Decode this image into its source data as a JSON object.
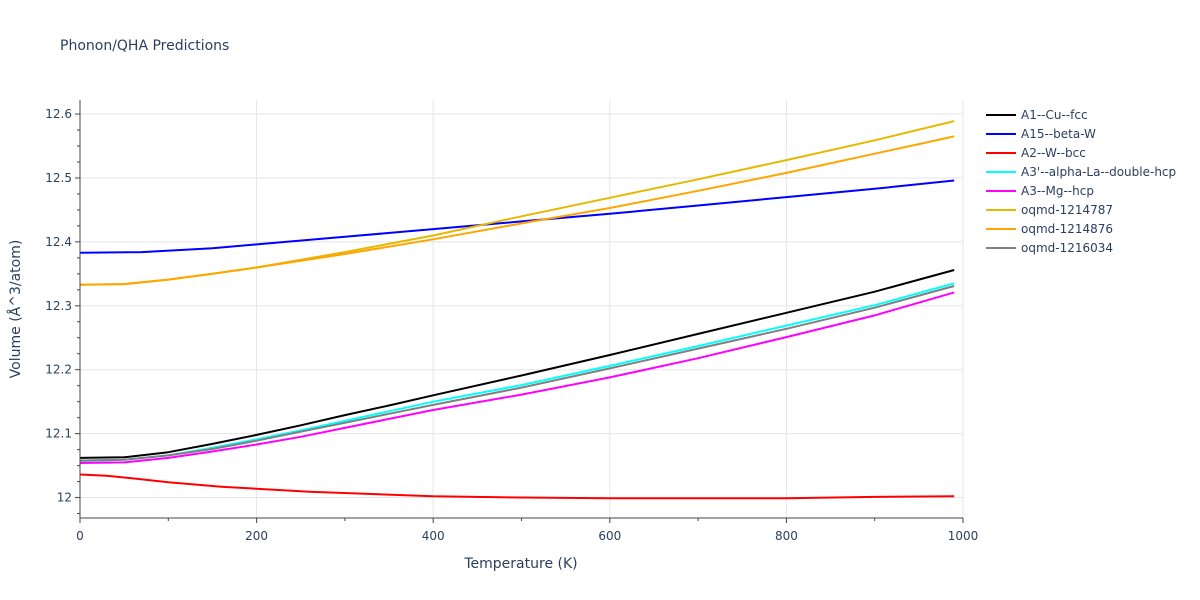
{
  "chart_data": {
    "type": "line",
    "title": "Phonon/QHA Predictions",
    "xlabel": "Temperature (K)",
    "ylabel": "Volume (Å^3/atom)",
    "xlim": [
      0,
      1000
    ],
    "ylim": [
      11.968,
      12.622
    ],
    "xticks": [
      0,
      200,
      400,
      600,
      800,
      1000
    ],
    "xtick_labels": [
      "0",
      "200",
      "400",
      "600",
      "800",
      "1000"
    ],
    "yticks": [
      12.0,
      12.1,
      12.2,
      12.3,
      12.4,
      12.5,
      12.6
    ],
    "ytick_labels": [
      "12",
      "12.1",
      "12.2",
      "12.3",
      "12.4",
      "12.5",
      "12.6"
    ],
    "grid": true,
    "legend_position": "top-right",
    "series": [
      {
        "name": "A1--Cu--fcc",
        "color": "#000000",
        "x": [
          0,
          50,
          100,
          150,
          200,
          250,
          300,
          350,
          400,
          500,
          600,
          700,
          800,
          900,
          990
        ],
        "y": [
          12.062,
          12.063,
          12.071,
          12.084,
          12.098,
          12.113,
          12.129,
          12.144,
          12.16,
          12.191,
          12.223,
          12.256,
          12.289,
          12.322,
          12.356
        ]
      },
      {
        "name": "A15--beta-W",
        "color": "#0000ff",
        "x": [
          0,
          70,
          150,
          200,
          300,
          400,
          500,
          600,
          700,
          800,
          900,
          990
        ],
        "y": [
          12.383,
          12.384,
          12.39,
          12.396,
          12.408,
          12.42,
          12.432,
          12.444,
          12.457,
          12.47,
          12.483,
          12.496
        ]
      },
      {
        "name": "A2--W--bcc",
        "color": "#ff0000",
        "x": [
          0,
          30,
          60,
          100,
          160,
          260,
          400,
          500,
          600,
          700,
          800,
          900,
          990
        ],
        "y": [
          12.036,
          12.034,
          12.03,
          12.024,
          12.017,
          12.009,
          12.002,
          12.0,
          11.999,
          11.999,
          11.999,
          12.001,
          12.002
        ]
      },
      {
        "name": "A3'--alpha-La--double-hcp",
        "color": "#00ffff",
        "x": [
          0,
          50,
          100,
          150,
          200,
          250,
          300,
          350,
          400,
          500,
          600,
          700,
          800,
          900,
          990
        ],
        "y": [
          12.057,
          12.059,
          12.066,
          12.078,
          12.091,
          12.105,
          12.12,
          12.135,
          12.15,
          12.176,
          12.206,
          12.237,
          12.269,
          12.301,
          12.335
        ]
      },
      {
        "name": "A3--Mg--hcp",
        "color": "#ff00ff",
        "x": [
          0,
          50,
          100,
          150,
          200,
          250,
          300,
          350,
          400,
          500,
          600,
          700,
          800,
          900,
          990
        ],
        "y": [
          12.054,
          12.055,
          12.062,
          12.072,
          12.083,
          12.095,
          12.109,
          12.123,
          12.137,
          12.161,
          12.188,
          12.218,
          12.251,
          12.285,
          12.321
        ]
      },
      {
        "name": "oqmd-1214787",
        "color": "#e6b800",
        "x": [
          0,
          50,
          100,
          150,
          200,
          300,
          400,
          500,
          600,
          700,
          800,
          900,
          990
        ],
        "y": [
          12.333,
          12.334,
          12.341,
          12.35,
          12.36,
          12.384,
          12.41,
          12.44,
          12.469,
          12.498,
          12.528,
          12.559,
          12.589
        ]
      },
      {
        "name": "oqmd-1214876",
        "color": "#ffa500",
        "x": [
          0,
          50,
          100,
          150,
          200,
          300,
          400,
          500,
          600,
          700,
          800,
          900,
          990
        ],
        "y": [
          12.333,
          12.334,
          12.341,
          12.35,
          12.36,
          12.381,
          12.404,
          12.429,
          12.453,
          12.48,
          12.508,
          12.538,
          12.565
        ]
      },
      {
        "name": "oqmd-1216034",
        "color": "#808080",
        "x": [
          0,
          50,
          100,
          150,
          200,
          250,
          300,
          350,
          400,
          500,
          600,
          700,
          800,
          900,
          990
        ],
        "y": [
          12.058,
          12.059,
          12.066,
          12.076,
          12.089,
          12.103,
          12.117,
          12.131,
          12.145,
          12.172,
          12.202,
          12.233,
          12.264,
          12.297,
          12.331
        ]
      }
    ]
  }
}
